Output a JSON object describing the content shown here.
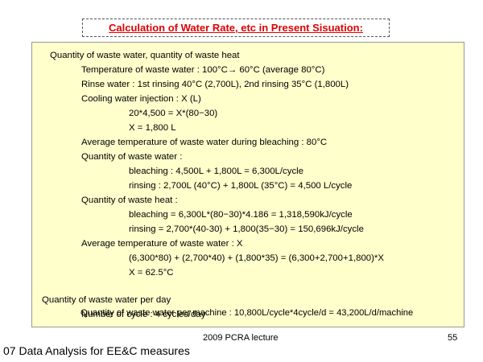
{
  "slide": {
    "title": "Calculation of Water Rate, etc in Present Sisuation:",
    "lines": [
      "Quantity of waste water, quantity of waste heat",
      "Temperature of waste water : 100°C→ 60°C (average 80°C)",
      "Rinse water : 1st rinsing 40°C (2,700L), 2nd rinsing 35°C (1,800L)",
      "Cooling water injection : X (L)",
      "20*4,500 = X*(80−30)",
      "X = 1,800 L",
      "Average temperature of waste water during bleaching : 80°C",
      "Quantity of waste water :",
      "bleaching : 4,500L + 1,800L = 6,300L/cycle",
      "rinsing : 2,700L (40°C) + 1,800L (35°C) = 4,500 L/cycle",
      "Quantity of waste heat :",
      "bleaching = 6,300L*(80−30)*4.186 = 1,318,590kJ/cycle",
      "rinsing = 2,700*(40-30) + 1,800(35−30) = 150,696kJ/cycle",
      "Average temperature of waste water : X",
      "(6,300*80) + (2,700*40) + (1,800*35) = (6,300+2,700+1,800)*X",
      "X = 62.5°C",
      "Quantity of waste water per day",
      "Number of cycle : 4 cycles/day",
      "Quantity of waste water per machine : 10,800L/cycle*4cycle/d = 43,200L/d/machine"
    ]
  },
  "footer": {
    "lecture": "2009 PCRA lecture",
    "page_number": "55",
    "caption": "07 Data Analysis for EE&C measures"
  }
}
